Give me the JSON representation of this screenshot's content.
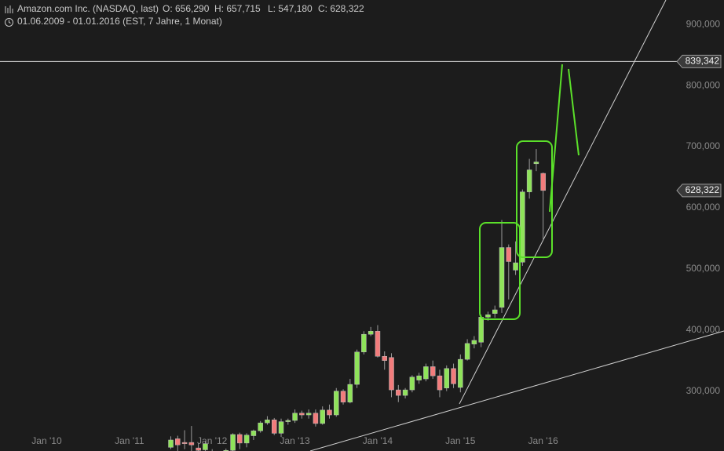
{
  "header": {
    "title": "Amazon.com Inc. (NASDAQ, last)",
    "ohlc": [
      "O: 656,290",
      "H: 657,715",
      "L: 547,180",
      "C: 628,322"
    ],
    "period": "01.06.2009 - 01.01.2016 (EST, 7 Jahre, 1 Monat)"
  },
  "chart_data": {
    "type": "candlestick",
    "x": [
      "2011-07",
      "2011-08",
      "2011-09",
      "2011-10",
      "2011-11",
      "2011-12",
      "2012-01",
      "2012-02",
      "2012-03",
      "2012-04",
      "2012-05",
      "2012-06",
      "2012-07",
      "2012-08",
      "2012-09",
      "2012-10",
      "2012-11",
      "2012-12",
      "2013-01",
      "2013-02",
      "2013-03",
      "2013-04",
      "2013-05",
      "2013-06",
      "2013-07",
      "2013-08",
      "2013-09",
      "2013-10",
      "2013-11",
      "2013-12",
      "2014-01",
      "2014-02",
      "2014-03",
      "2014-04",
      "2014-05",
      "2014-06",
      "2014-07",
      "2014-08",
      "2014-09",
      "2014-10",
      "2014-11",
      "2014-12",
      "2015-01",
      "2015-02",
      "2015-03",
      "2015-04",
      "2015-05",
      "2015-06",
      "2015-07",
      "2015-08",
      "2015-09",
      "2015-10",
      "2015-11",
      "2015-12",
      "2016-01"
    ],
    "open": [
      208000,
      222000,
      216000,
      216000,
      207000,
      204000,
      200000,
      195000,
      199000,
      203000,
      229000,
      215000,
      227000,
      235000,
      248000,
      253000,
      231000,
      250000,
      252000,
      264000,
      261000,
      264000,
      247000,
      269000,
      261000,
      300000,
      282000,
      311000,
      364000,
      393000,
      398000,
      357000,
      355000,
      302000,
      293000,
      302000,
      318000,
      320000,
      340000,
      325000,
      305000,
      337000,
      306000,
      352000,
      377000,
      380000,
      421000,
      427000,
      437000,
      535000,
      498000,
      511000,
      626000,
      672000,
      656290
    ],
    "high": [
      226000,
      227000,
      236000,
      243000,
      215000,
      218000,
      205000,
      201000,
      206000,
      231000,
      232000,
      231000,
      237000,
      251000,
      259000,
      256000,
      255000,
      255000,
      270000,
      268000,
      270000,
      270000,
      275000,
      278000,
      305000,
      303000,
      320000,
      368000,
      398000,
      405000,
      408000,
      365000,
      362000,
      310000,
      305000,
      326000,
      330000,
      345000,
      350000,
      335000,
      342000,
      345000,
      360000,
      385000,
      390000,
      425000,
      430000,
      440000,
      580000,
      540000,
      545000,
      630000,
      680000,
      696000,
      657715
    ],
    "low": [
      205000,
      200000,
      205000,
      200000,
      198000,
      199000,
      190000,
      192000,
      196000,
      200000,
      205000,
      208000,
      220000,
      232000,
      245000,
      228000,
      225000,
      245000,
      248000,
      255000,
      255000,
      242000,
      245000,
      255000,
      258000,
      278000,
      280000,
      305000,
      360000,
      390000,
      355000,
      335000,
      290000,
      282000,
      288000,
      298000,
      312000,
      316000,
      320000,
      290000,
      300000,
      305000,
      298000,
      350000,
      370000,
      372000,
      415000,
      420000,
      428000,
      450000,
      490000,
      505000,
      615000,
      660000,
      547180
    ],
    "close": [
      220000,
      212000,
      214000,
      212000,
      203000,
      214000,
      195000,
      199000,
      203000,
      229000,
      215000,
      228000,
      235000,
      248000,
      253000,
      231000,
      250000,
      252000,
      264000,
      261000,
      264000,
      247000,
      269000,
      261000,
      300000,
      282000,
      311000,
      364000,
      393000,
      398000,
      357000,
      350000,
      302000,
      293000,
      302000,
      323000,
      325000,
      340000,
      325000,
      302000,
      337000,
      312000,
      352000,
      378000,
      383000,
      421000,
      425000,
      433000,
      535000,
      512000,
      510000,
      626000,
      662000,
      675000,
      628322
    ],
    "up_color": "#8fe35a",
    "down_color": "#f27c7c",
    "xlim": [
      "2009-06",
      "2018-03"
    ],
    "xticks": [
      {
        "value": "2010-01",
        "label": "Jan '10"
      },
      {
        "value": "2011-01",
        "label": "Jan '11"
      },
      {
        "value": "2012-01",
        "label": "Jan '12"
      },
      {
        "value": "2013-01",
        "label": "Jan '13"
      },
      {
        "value": "2014-01",
        "label": "Jan '14"
      },
      {
        "value": "2015-01",
        "label": "Jan '15"
      },
      {
        "value": "2016-01",
        "label": "Jan '16"
      }
    ],
    "ylim": [
      202000,
      940000
    ],
    "yticks": [
      {
        "value": 300000,
        "label": "300,000"
      },
      {
        "value": 400000,
        "label": "400,000"
      },
      {
        "value": 500000,
        "label": "500,000"
      },
      {
        "value": 600000,
        "label": "600,000"
      },
      {
        "value": 700000,
        "label": "700,000"
      },
      {
        "value": 800000,
        "label": "800,000"
      },
      {
        "value": 900000,
        "label": "900,000"
      }
    ],
    "hline": {
      "value": 839342,
      "label": "839,342"
    },
    "last_price": {
      "value": 628322,
      "label": "628,322"
    }
  }
}
